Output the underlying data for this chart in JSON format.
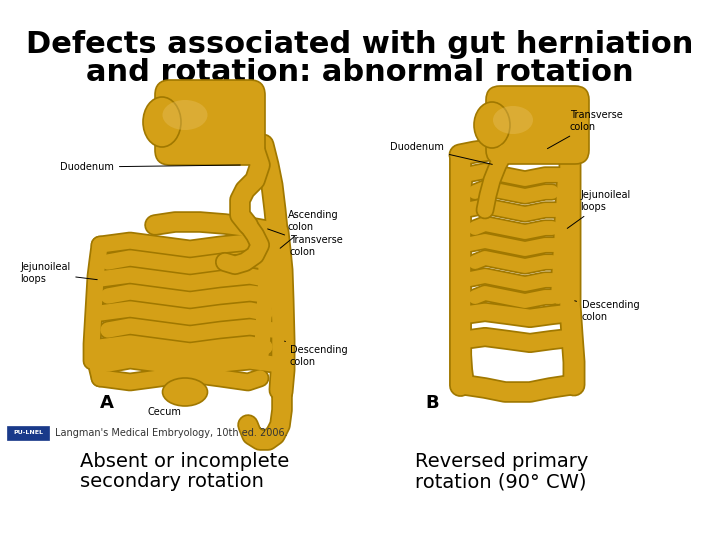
{
  "title_line1": "Defects associated with gut herniation",
  "title_line2": "and rotation: abnormal rotation",
  "caption_left_line1": "Absent or incomplete",
  "caption_left_line2": "secondary rotation",
  "caption_right_line1": "Reversed primary",
  "caption_right_line2": "rotation (90° CW)",
  "source_text": "Langman's Medical Embryology, 10th ed. 2006.",
  "background_color": "#ffffff",
  "title_color": "#000000",
  "caption_color": "#000000",
  "title_fontsize": 22,
  "caption_fontsize": 14,
  "source_fontsize": 7,
  "label_fontsize": 7,
  "gut_color": "#D4A017",
  "gut_edge": "#A07800",
  "gut_highlight": "#E8C060"
}
